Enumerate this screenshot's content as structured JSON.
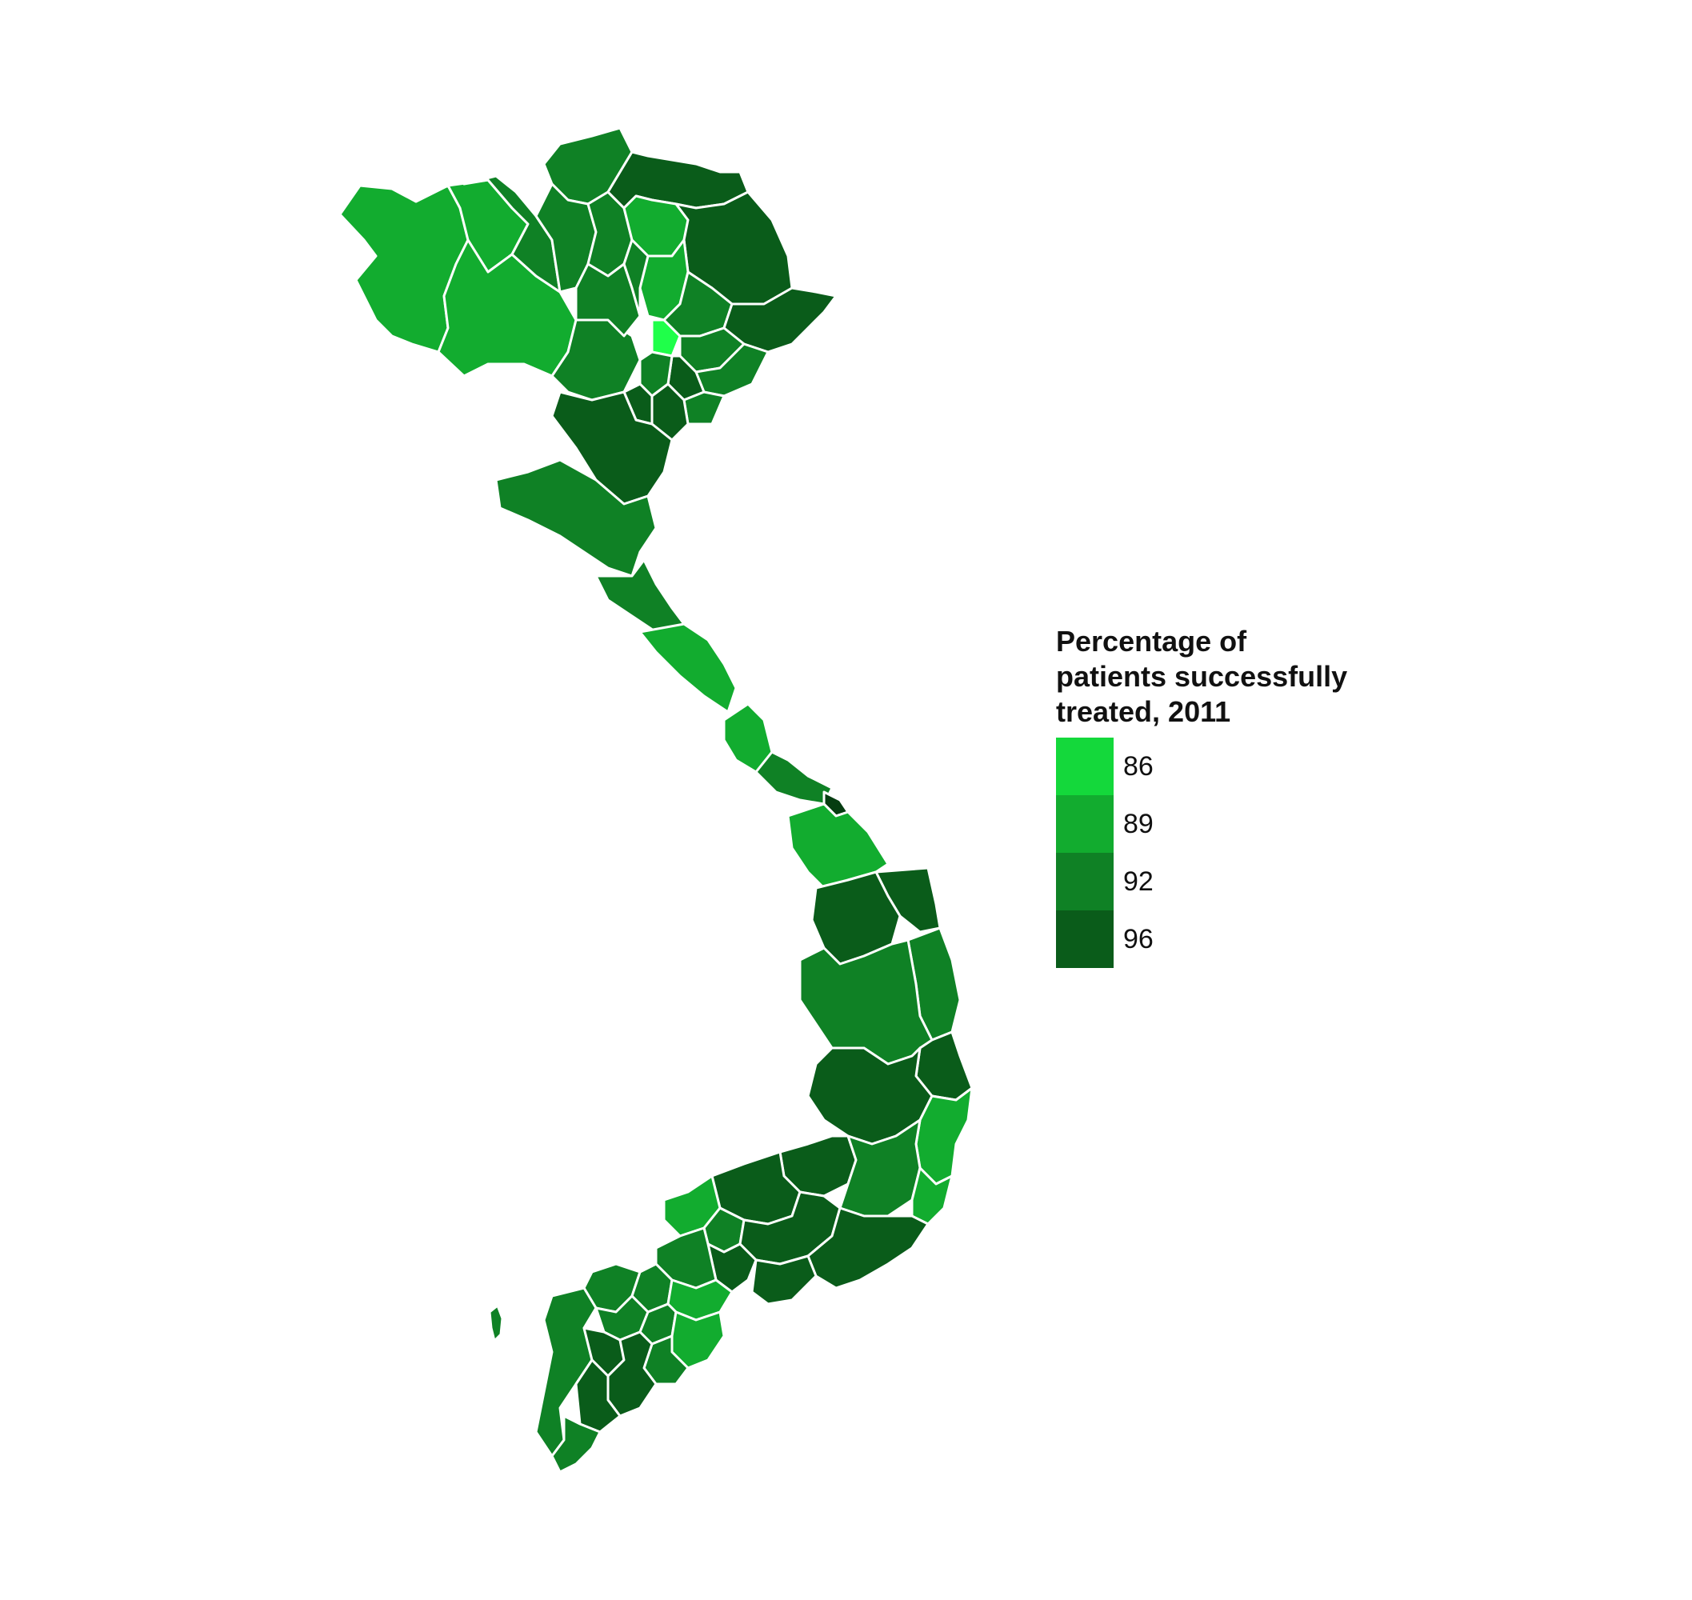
{
  "legend": {
    "title": "Percentage of\npatients successfully\ntreated, 2011",
    "items": [
      {
        "label": "86",
        "value": 86,
        "color": "#14d83b"
      },
      {
        "label": "89",
        "value": 89,
        "color": "#12ac2f"
      },
      {
        "label": "92",
        "value": 92,
        "color": "#0f8125"
      },
      {
        "label": "96",
        "value": 96,
        "color": "#0a5c1a"
      }
    ]
  },
  "map": {
    "country": "Vietnam",
    "region_type": "provinces",
    "border_color": "#ffffff",
    "bright_highlight_color": "#1fff4a",
    "darkest_color": "#063d11"
  }
}
